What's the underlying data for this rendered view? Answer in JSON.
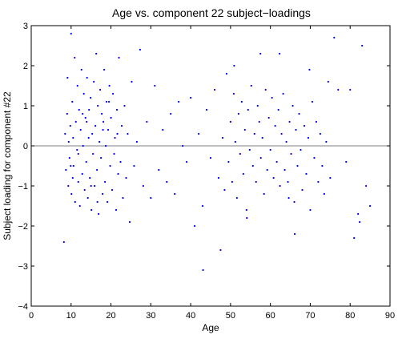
{
  "chart_data": {
    "type": "scatter",
    "title": "Age vs. component 22 subject−loadings",
    "xlabel": "Age",
    "ylabel": "Subject loading for component #22",
    "xlim": [
      0,
      90
    ],
    "ylim": [
      -4,
      3
    ],
    "xticks": [
      0,
      10,
      20,
      30,
      40,
      50,
      60,
      70,
      80,
      90
    ],
    "xtick_labels": [
      "0",
      "10",
      "20",
      "30",
      "40",
      "50",
      "60",
      "70",
      "80",
      "90"
    ],
    "yticks": [
      -4,
      -3,
      -2,
      -1,
      0,
      1,
      2,
      3
    ],
    "ytick_labels": [
      "−4",
      "−3",
      "−2",
      "−1",
      "0",
      "1",
      "2",
      "3"
    ],
    "reference_line_y": 0,
    "grid": false,
    "legend": "none",
    "marker_color": "#0000ff",
    "reference_line_color": "#808080",
    "series": [
      {
        "x": [
          8.2,
          8.5,
          8.7,
          9.0,
          9.1,
          9.3,
          9.4,
          9.6,
          9.8,
          10.0,
          10.1,
          10.3,
          10.5,
          10.6,
          10.9,
          11.0,
          11.2,
          11.5,
          11.6,
          11.8,
          12.0,
          12.2,
          12.4,
          12.6,
          12.8,
          13.0,
          13.2,
          13.4,
          13.6,
          13.8,
          14.0,
          14.2,
          14.4,
          14.5,
          14.7,
          14.9,
          15.1,
          15.3,
          15.5,
          15.7,
          15.9,
          16.1,
          16.3,
          16.5,
          16.7,
          16.9,
          17.1,
          17.3,
          17.5,
          17.7,
          17.9,
          18.1,
          18.3,
          18.5,
          18.7,
          18.9,
          19.1,
          19.3,
          19.6,
          19.8,
          20.0,
          20.3,
          20.5,
          20.8,
          21.0,
          21.3,
          21.5,
          21.8,
          22.0,
          22.4,
          22.7,
          23.0,
          23.4,
          23.8,
          24.2,
          24.7,
          25.2,
          25.8,
          26.5,
          27.3,
          28.1,
          29.0,
          30.0,
          31.0,
          32.0,
          33.0,
          34.0,
          35.0,
          36.0,
          37.0,
          38.0,
          39.0,
          40.0,
          41.0,
          42.0,
          43.0,
          44.0,
          45.0,
          46.0,
          47.0,
          48.0,
          48.5,
          49.0,
          49.5,
          50.0,
          50.4,
          50.8,
          51.2,
          51.6,
          52.0,
          52.4,
          52.8,
          53.2,
          53.6,
          54.0,
          54.4,
          54.8,
          55.2,
          55.6,
          56.0,
          56.4,
          56.8,
          57.2,
          57.6,
          58.0,
          58.4,
          58.8,
          59.2,
          59.6,
          60.0,
          60.4,
          60.8,
          61.2,
          61.6,
          62.0,
          62.4,
          62.8,
          63.2,
          63.6,
          64.0,
          64.4,
          64.8,
          65.2,
          65.6,
          66.0,
          66.4,
          66.8,
          67.2,
          67.6,
          68.0,
          68.5,
          69.0,
          69.5,
          70.0,
          70.5,
          71.0,
          71.5,
          72.0,
          72.5,
          73.0,
          73.5,
          74.0,
          74.5,
          75.0,
          76.0,
          77.0,
          79.0,
          80.0,
          81.0,
          82.0,
          83.0,
          84.0,
          85.0,
          10.4,
          13.9,
          16.6,
          21.6,
          19.5,
          11.8,
          15.0,
          12.9,
          18.0,
          9.9,
          47.5,
          62.3,
          54.1,
          50.9,
          66.1,
          69.8,
          43.1,
          57.5,
          64.6,
          82.4
        ],
        "y": [
          -2.4,
          0.3,
          -0.6,
          0.8,
          1.7,
          -1.0,
          0.1,
          -0.3,
          0.5,
          2.8,
          -1.2,
          1.1,
          0.2,
          -0.5,
          2.2,
          -1.4,
          0.6,
          -0.1,
          1.5,
          -0.9,
          0.9,
          -1.5,
          0.4,
          1.9,
          -0.7,
          0.0,
          1.3,
          -1.1,
          0.7,
          -0.4,
          1.7,
          -1.3,
          0.2,
          0.9,
          -0.8,
          1.2,
          -1.6,
          0.3,
          -0.2,
          1.6,
          -1.0,
          0.5,
          2.3,
          -0.6,
          1.0,
          -1.7,
          0.1,
          1.4,
          -0.3,
          0.8,
          -1.2,
          0.6,
          1.9,
          -0.9,
          0.0,
          1.1,
          -1.4,
          0.4,
          1.5,
          -0.5,
          0.7,
          -1.1,
          1.3,
          -0.2,
          0.2,
          -1.6,
          0.9,
          -0.7,
          2.2,
          -0.4,
          0.5,
          -1.3,
          1.0,
          -0.8,
          0.3,
          -1.9,
          1.6,
          -0.5,
          0.1,
          2.4,
          -1.0,
          0.6,
          -1.3,
          1.5,
          -0.6,
          0.4,
          -0.9,
          0.8,
          -1.2,
          1.1,
          0.0,
          -0.4,
          1.2,
          -2.0,
          0.3,
          -1.5,
          0.9,
          -0.3,
          1.4,
          -0.8,
          0.2,
          -1.1,
          1.8,
          -0.4,
          0.6,
          -0.9,
          1.3,
          0.1,
          -1.3,
          0.8,
          -0.2,
          1.1,
          -0.7,
          0.4,
          -1.6,
          0.9,
          -0.1,
          1.5,
          -0.5,
          0.3,
          -0.9,
          1.0,
          0.6,
          -0.3,
          0.2,
          -1.2,
          1.4,
          -0.6,
          0.7,
          -0.1,
          1.2,
          -0.8,
          0.5,
          -0.4,
          0.9,
          -1.0,
          0.3,
          1.3,
          -0.6,
          0.1,
          -0.9,
          0.6,
          -0.2,
          1.0,
          -1.4,
          0.4,
          -0.5,
          0.8,
          -0.1,
          -1.1,
          0.5,
          -0.7,
          0.2,
          -1.6,
          1.1,
          -0.3,
          0.6,
          -0.9,
          0.3,
          -0.5,
          -1.2,
          0.1,
          1.6,
          -0.8,
          2.7,
          1.4,
          -0.4,
          1.4,
          -2.3,
          -1.7,
          2.5,
          -1.0,
          -1.5,
          -0.8,
          0.6,
          -1.4,
          0.3,
          1.1,
          -0.2,
          -1.0,
          0.8,
          0.4,
          -0.5,
          -2.6,
          2.3,
          -1.8,
          2.0,
          -2.2,
          1.9,
          -3.1,
          2.3,
          -1.3,
          -1.9
        ]
      }
    ]
  }
}
